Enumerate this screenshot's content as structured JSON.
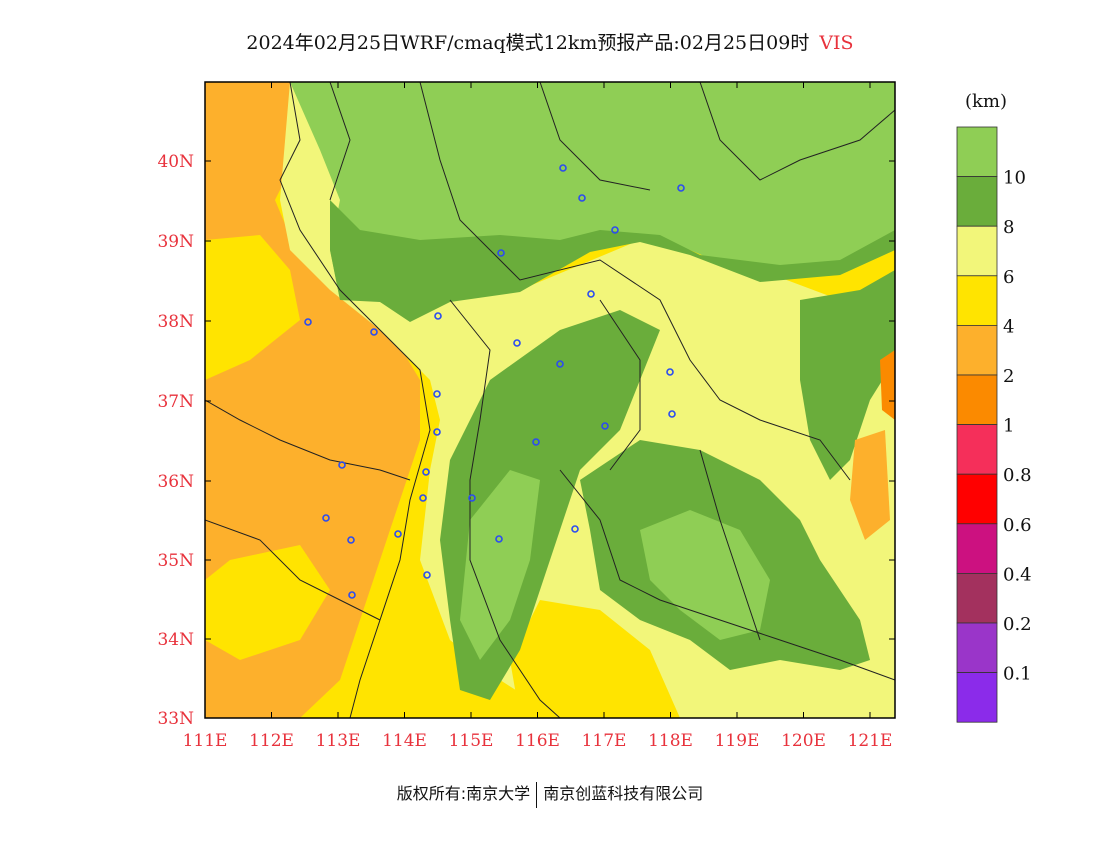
{
  "title": {
    "main": "2024年02月25日WRF/cmaq模式12km预报产品:02月25日09时",
    "variable": "VIS"
  },
  "map": {
    "lat_labels": [
      "40N",
      "39N",
      "38N",
      "37N",
      "36N",
      "35N",
      "34N",
      "33N"
    ],
    "lon_labels": [
      "111E",
      "112E",
      "113E",
      "114E",
      "115E",
      "116E",
      "117E",
      "118E",
      "119E",
      "120E",
      "121E"
    ],
    "fills": {
      "gt10": "#8fce55",
      "8to10": "#6aad3b",
      "6to8": "#f2f67a",
      "4to6": "#ffe400",
      "2to4": "#fdb02c",
      "1to2": "#fb8a00"
    },
    "station_color": "#2b4cf0"
  },
  "legend": {
    "unit": "(km)",
    "bins": [
      {
        "color": "#8fce55"
      },
      {
        "color": "#6aad3b"
      },
      {
        "color": "#f2f67a"
      },
      {
        "color": "#ffe400"
      },
      {
        "color": "#fdb02c"
      },
      {
        "color": "#fb8a00"
      },
      {
        "color": "#f52f5a"
      },
      {
        "color": "#ff0000"
      },
      {
        "color": "#cc1180"
      },
      {
        "color": "#a3315e"
      },
      {
        "color": "#9a35c9"
      },
      {
        "color": "#8b2bea"
      }
    ],
    "labels": [
      "10",
      "8",
      "6",
      "4",
      "2",
      "1",
      "0.8",
      "0.6",
      "0.4",
      "0.2",
      "0.1"
    ]
  },
  "footer": {
    "left": "版权所有:南京大学",
    "right": "南京创蓝科技有限公司"
  }
}
